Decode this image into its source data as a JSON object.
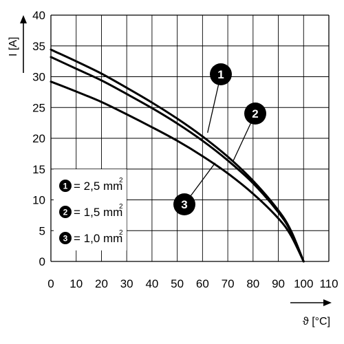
{
  "chart_data": {
    "type": "line",
    "xlabel": "ϑ [°C]",
    "ylabel": "I [A]",
    "xlim": [
      0,
      110
    ],
    "ylim": [
      0,
      40
    ],
    "x_ticks": [
      "0",
      "10",
      "20",
      "30",
      "40",
      "50",
      "60",
      "70",
      "80",
      "90",
      "100",
      "110"
    ],
    "y_ticks": [
      "0",
      "5",
      "10",
      "15",
      "20",
      "25",
      "30",
      "35",
      "40"
    ],
    "grid": true,
    "legend_position": "bottom-left",
    "legend": [
      {
        "number": "1",
        "text": "= 2,5 mm",
        "sup": "2"
      },
      {
        "number": "2",
        "text": "= 1,5 mm",
        "sup": "2"
      },
      {
        "number": "3",
        "text": "= 1,0 mm",
        "sup": "2"
      }
    ],
    "series": [
      {
        "marker": "1",
        "x": [
          0,
          10,
          20,
          30,
          40,
          50,
          60,
          70,
          80,
          90,
          95,
          100
        ],
        "y": [
          34.4,
          32.5,
          30.5,
          28.2,
          25.8,
          23.2,
          20.3,
          17.0,
          13.1,
          8.3,
          5.0,
          0
        ]
      },
      {
        "marker": "2",
        "x": [
          0,
          10,
          20,
          30,
          40,
          50,
          60,
          70,
          80,
          90,
          95,
          100
        ],
        "y": [
          33.2,
          31.3,
          29.4,
          27.2,
          24.9,
          22.4,
          19.6,
          16.4,
          12.7,
          8.0,
          4.8,
          0
        ]
      },
      {
        "marker": "3",
        "x": [
          0,
          10,
          20,
          30,
          40,
          50,
          60,
          70,
          80,
          90,
          95,
          100
        ],
        "y": [
          29.2,
          27.6,
          25.9,
          23.9,
          21.8,
          19.6,
          17.1,
          14.3,
          11.0,
          7.0,
          4.2,
          0
        ]
      }
    ],
    "markers": [
      {
        "number": "1",
        "at_x": 62,
        "at_y": 20.9
      },
      {
        "number": "2",
        "at_x": 72,
        "at_y": 16.2
      },
      {
        "number": "3",
        "at_x": 65,
        "at_y": 16.0
      }
    ]
  }
}
